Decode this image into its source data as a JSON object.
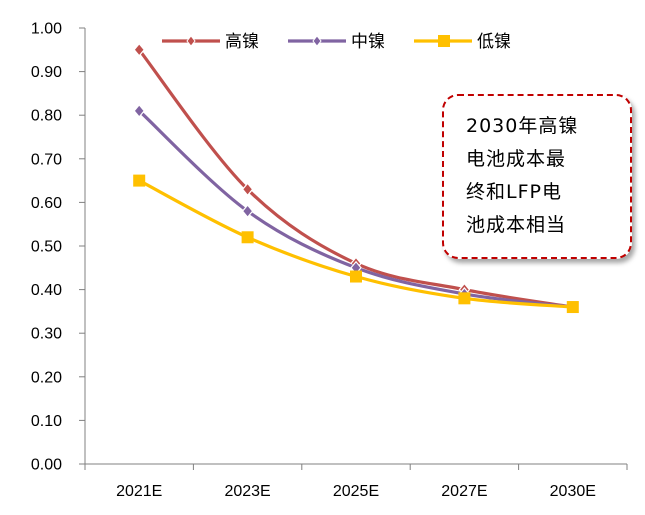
{
  "chart_data": {
    "type": "line",
    "title": "",
    "xlabel": "",
    "ylabel": "",
    "categories": [
      "2021E",
      "2023E",
      "2025E",
      "2027E",
      "2030E"
    ],
    "ylim": [
      0,
      1
    ],
    "yticks": [
      "0.00",
      "0.10",
      "0.20",
      "0.30",
      "0.40",
      "0.50",
      "0.60",
      "0.70",
      "0.80",
      "0.90",
      "1.00"
    ],
    "series": [
      {
        "name": "高镍",
        "color": "#c0504d",
        "marker": "diamond",
        "values": [
          0.95,
          0.63,
          0.46,
          0.4,
          0.36
        ]
      },
      {
        "name": "中镍",
        "color": "#8064a2",
        "marker": "diamond",
        "values": [
          0.81,
          0.58,
          0.45,
          0.39,
          0.36
        ]
      },
      {
        "name": "低镍",
        "color": "#ffc000",
        "marker": "square",
        "values": [
          0.65,
          0.52,
          0.43,
          0.38,
          0.36
        ]
      }
    ],
    "legend_position": "top",
    "annotation": [
      "2030年高镍",
      "电池成本最",
      "终和LFP电",
      "池成本相当"
    ]
  }
}
